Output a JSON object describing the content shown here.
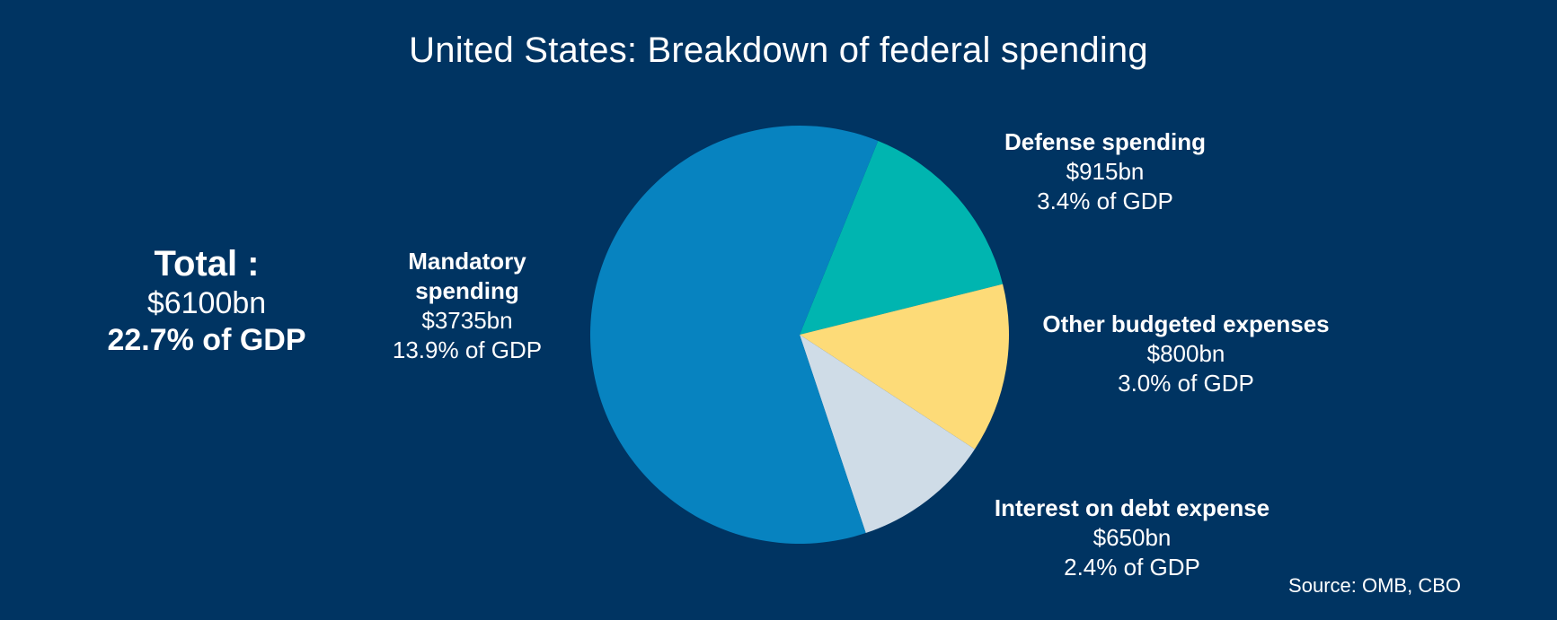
{
  "title": "United States: Breakdown of federal spending",
  "total": {
    "heading": "Total :",
    "amount": "$6100bn",
    "pct": "22.7% of GDP"
  },
  "source": "Source: OMB, CBO",
  "colors": {
    "background": "#003462",
    "mandatory": "#0783C0",
    "defense": "#00B5B0",
    "other": "#FDDB78",
    "interest": "#CFDCE7"
  },
  "chart_data": {
    "type": "pie",
    "title": "United States: Breakdown of federal spending",
    "unit": "$bn",
    "slices": [
      {
        "label": "Defense spending",
        "value": 915,
        "value_text": "$915bn",
        "gdp_text": "3.4% of GDP",
        "color": "#00B5B0"
      },
      {
        "label": "Other budgeted expenses",
        "value": 800,
        "value_text": "$800bn",
        "gdp_text": "3.0% of GDP",
        "color": "#FDDB78"
      },
      {
        "label": "Interest on debt expense",
        "value": 650,
        "value_text": "$650bn",
        "gdp_text": "2.4% of GDP",
        "color": "#CFDCE7"
      },
      {
        "label": "Mandatory spending",
        "value": 3735,
        "value_text": "$3735bn",
        "gdp_text": "13.9% of GDP",
        "color": "#0783C0"
      }
    ]
  }
}
